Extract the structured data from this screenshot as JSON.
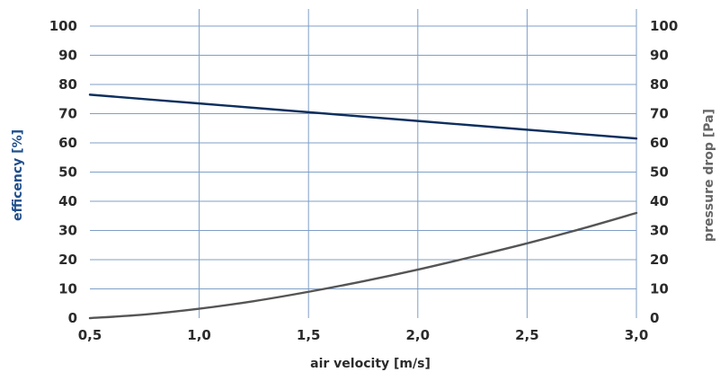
{
  "chart_data": {
    "type": "line",
    "title": "",
    "xlabel": "air velocity [m/s]",
    "ylabel_left": "efficency [%]",
    "ylabel_right": "pressure drop [Pa]",
    "xlim": [
      0.5,
      3.0
    ],
    "ylim": [
      0,
      100
    ],
    "x_ticks": [
      0.5,
      1.0,
      1.5,
      2.0,
      2.5,
      3.0
    ],
    "x_tick_labels": [
      "0,5",
      "1,0",
      "1,5",
      "2,0",
      "2,5",
      "3,0"
    ],
    "y_ticks": [
      0,
      10,
      20,
      30,
      40,
      50,
      60,
      70,
      80,
      90,
      100
    ],
    "y_tick_labels": [
      "0",
      "10",
      "20",
      "30",
      "40",
      "50",
      "60",
      "70",
      "80",
      "90",
      "100"
    ],
    "grid": true,
    "legend": "none",
    "colors": {
      "grid": "#7f9fc7",
      "efficiency_line": "#0d2f5e",
      "pressure_line": "#555555",
      "left_axis_title": "#1f4e8c",
      "right_axis_title": "#666666",
      "xlabel": "#2b2b2b"
    },
    "series": [
      {
        "axis": "left",
        "color_key": "efficiency_line",
        "x": [
          0.5,
          1.0,
          1.5,
          2.0,
          2.5,
          3.0
        ],
        "y": [
          76.5,
          73.5,
          70.5,
          67.5,
          64.5,
          61.5
        ]
      },
      {
        "axis": "right",
        "color_key": "pressure_line",
        "x": [
          0.5,
          0.75,
          1.0,
          1.25,
          1.5,
          1.75,
          2.0,
          2.25,
          2.5,
          2.75,
          3.0
        ],
        "y": [
          0,
          1.2,
          3.2,
          5.8,
          9.0,
          12.6,
          16.6,
          21.0,
          25.6,
          30.6,
          36.0
        ]
      }
    ]
  }
}
